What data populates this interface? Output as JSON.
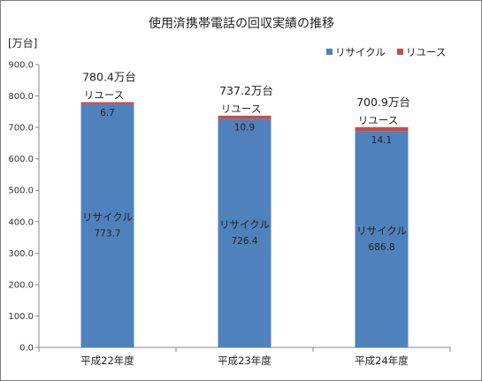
{
  "chart_data": {
    "type": "bar",
    "stacked": true,
    "title": "使用済携帯電話の回収実績の推移",
    "ylabel": "[万台]",
    "xlabel": "",
    "ylim": [
      0,
      900
    ],
    "ytick_step": 100,
    "ytick_labels": [
      "0.0",
      "100.0",
      "200.0",
      "300.0",
      "400.0",
      "500.0",
      "600.0",
      "700.0",
      "800.0",
      "900.0"
    ],
    "grid": false,
    "legend_position": "top-right",
    "categories": [
      "平成22年度",
      "平成23年度",
      "平成24年度"
    ],
    "series": [
      {
        "name": "リサイクル",
        "color": "#4f81bd",
        "values": [
          773.7,
          726.4,
          686.8
        ],
        "value_labels": [
          "773.7",
          "726.4",
          "686.8"
        ]
      },
      {
        "name": "リユース",
        "color": "#c0504d",
        "values": [
          6.7,
          10.9,
          14.1
        ],
        "value_labels": [
          "6.7",
          "10.9",
          "14.1"
        ]
      }
    ],
    "totals": [
      "780.4万台",
      "737.2万台",
      "700.9万台"
    ]
  }
}
